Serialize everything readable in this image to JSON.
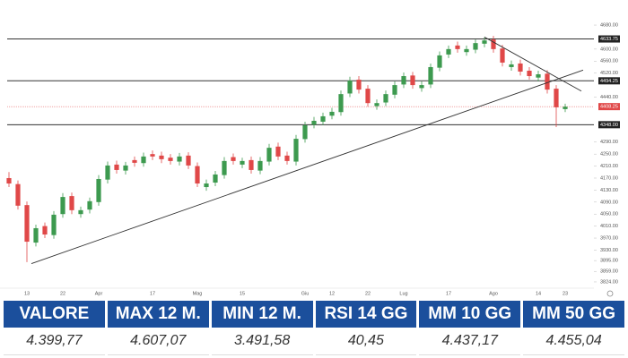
{
  "chart_data": {
    "type": "candlestick",
    "categories": [
      null,
      null,
      "13",
      null,
      null,
      null,
      "22",
      null,
      null,
      null,
      "Apr",
      null,
      null,
      null,
      null,
      null,
      "17",
      null,
      null,
      null,
      null,
      "Mag",
      null,
      null,
      null,
      null,
      "15",
      null,
      null,
      null,
      null,
      null,
      null,
      "Giu",
      null,
      null,
      "12",
      null,
      null,
      null,
      "22",
      null,
      null,
      null,
      "Lug",
      null,
      null,
      null,
      null,
      "17",
      null,
      null,
      null,
      null,
      "Ago",
      null,
      null,
      null,
      null,
      "14",
      null,
      null,
      "23"
    ],
    "open": [
      4170,
      4150,
      4080,
      3955,
      4010,
      3980,
      4050,
      4110,
      4050,
      4065,
      4090,
      4165,
      4215,
      4195,
      4230,
      4220,
      4250,
      4245,
      4238,
      4225,
      4245,
      4210,
      4140,
      4155,
      4180,
      4240,
      4215,
      4230,
      4195,
      4225,
      4275,
      4245,
      4225,
      4300,
      4348,
      4358,
      4378,
      4390,
      4452,
      4498,
      4468,
      4410,
      4422,
      4448,
      4482,
      4512,
      4470,
      4482,
      4538,
      4582,
      4612,
      4590,
      4598,
      4618,
      4632,
      4602,
      4540,
      4552,
      4528,
      4505,
      4518,
      4468,
      4400
    ],
    "high": [
      4190,
      4162,
      4092,
      4015,
      4022,
      4060,
      4120,
      4122,
      4075,
      4105,
      4180,
      4225,
      4228,
      4224,
      4242,
      4255,
      4262,
      4258,
      4250,
      4254,
      4256,
      4222,
      4165,
      4194,
      4240,
      4252,
      4238,
      4242,
      4240,
      4284,
      4288,
      4258,
      4314,
      4358,
      4374,
      4388,
      4404,
      4462,
      4508,
      4510,
      4480,
      4432,
      4462,
      4492,
      4522,
      4524,
      4492,
      4552,
      4592,
      4612,
      4625,
      4612,
      4632,
      4640,
      4644,
      4614,
      4562,
      4565,
      4540,
      4528,
      4530,
      4480,
      4418
    ],
    "low": [
      4140,
      4065,
      3890,
      3942,
      3970,
      3968,
      4038,
      4050,
      4038,
      4052,
      4078,
      4152,
      4185,
      4182,
      4208,
      4208,
      4230,
      4220,
      4215,
      4212,
      4200,
      4140,
      4128,
      4143,
      4168,
      4215,
      4203,
      4185,
      4183,
      4212,
      4230,
      4215,
      4212,
      4288,
      4336,
      4346,
      4366,
      4378,
      4440,
      4452,
      4408,
      4398,
      4410,
      4436,
      4470,
      4468,
      4458,
      4470,
      4526,
      4570,
      4588,
      4578,
      4586,
      4606,
      4588,
      4542,
      4528,
      4512,
      4498,
      4492,
      4452,
      4340,
      4390
    ],
    "close": [
      4152,
      4078,
      3958,
      4003,
      3982,
      4048,
      4107,
      4063,
      4063,
      4093,
      4167,
      4212,
      4197,
      4212,
      4221,
      4242,
      4242,
      4233,
      4227,
      4242,
      4212,
      4152,
      4152,
      4182,
      4227,
      4227,
      4227,
      4197,
      4227,
      4271,
      4242,
      4227,
      4301,
      4346,
      4361,
      4376,
      4391,
      4450,
      4495,
      4465,
      4420,
      4420,
      4450,
      4480,
      4510,
      4480,
      4480,
      4540,
      4579,
      4600,
      4600,
      4600,
      4620,
      4629,
      4600,
      4555,
      4549,
      4525,
      4510,
      4516,
      4465,
      4406,
      4408
    ],
    "up_color": "#3d9a4f",
    "down_color": "#e04848",
    "ylim": [
      3803,
      4704
    ],
    "yticks": [
      {
        "value": 4680,
        "label": "4680.00"
      },
      {
        "value": 4600,
        "label": "4600.00"
      },
      {
        "value": 4560,
        "label": "4560.00"
      },
      {
        "value": 4520,
        "label": "4520.00"
      },
      {
        "value": 4440,
        "label": "4440.00"
      },
      {
        "value": 4290,
        "label": "4290.00"
      },
      {
        "value": 4250,
        "label": "4250.00"
      },
      {
        "value": 4210,
        "label": "4210.00"
      },
      {
        "value": 4170,
        "label": "4170.00"
      },
      {
        "value": 4130,
        "label": "4130.00"
      },
      {
        "value": 4090,
        "label": "4090.00"
      },
      {
        "value": 4050,
        "label": "4050.00"
      },
      {
        "value": 4010,
        "label": "4010.00"
      },
      {
        "value": 3970,
        "label": "3970.00"
      },
      {
        "value": 3930,
        "label": "3930.00"
      },
      {
        "value": 3895,
        "label": "3895.00"
      },
      {
        "value": 3859,
        "label": "3859.00"
      },
      {
        "value": 3824,
        "label": "3824.00"
      }
    ],
    "levels": [
      {
        "value": 4633.75,
        "label": "4633.75"
      },
      {
        "value": 4494.25,
        "label": "4494.25"
      },
      {
        "value": 4348,
        "label": "4348.00"
      }
    ],
    "last_price": {
      "value": 4408.25,
      "label": "4408.25",
      "color": "#e04848"
    },
    "trendlines": [
      {
        "x": [
          2.5,
          64
        ],
        "y": [
          3885,
          4530
        ]
      },
      {
        "x": [
          53,
          63.8
        ],
        "y": [
          4640,
          4460
        ]
      }
    ],
    "grid": false
  },
  "table": {
    "headers": [
      "VALORE",
      "MAX 12 M.",
      "MIN 12 M.",
      "RSI 14 GG",
      "MM 10 GG",
      "MM 50 GG"
    ],
    "rows": [
      [
        "4.399,77",
        "4.607,07",
        "3.491,58",
        "40,45",
        "4.437,17",
        "4.455,04"
      ]
    ]
  }
}
